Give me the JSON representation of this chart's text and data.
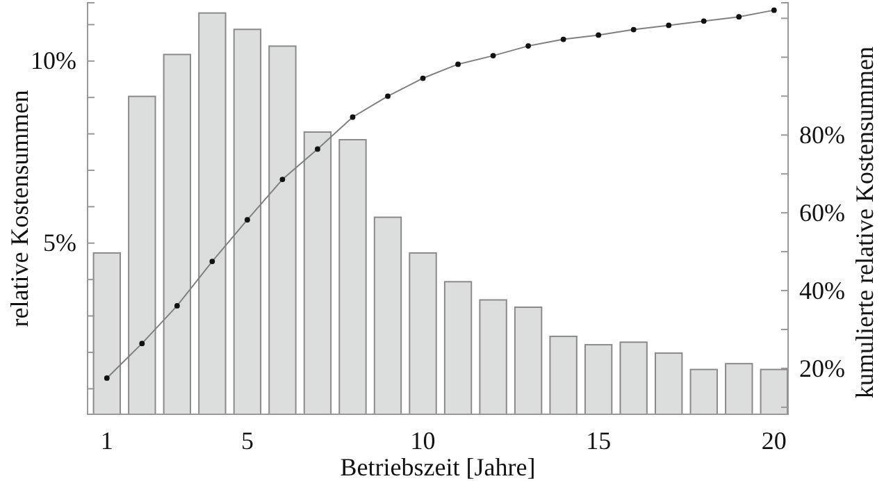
{
  "chart_data": {
    "type": "bar",
    "xlabel": "Betriebszeit [Jahre]",
    "ylabel": "relative Kostensummen",
    "y2label": "kumulierte relative Kostensummen",
    "x": [
      1,
      2,
      3,
      4,
      5,
      6,
      7,
      8,
      9,
      10,
      11,
      12,
      13,
      14,
      15,
      16,
      17,
      18,
      19,
      20
    ],
    "xlim": [
      0.45,
      20.4
    ],
    "xticks": [
      1,
      5,
      10,
      15,
      20
    ],
    "ylim": [
      0.3,
      11.6
    ],
    "yticks": [
      {
        "value": 1,
        "label": null
      },
      {
        "value": 2,
        "label": null
      },
      {
        "value": 3,
        "label": null
      },
      {
        "value": 4,
        "label": null
      },
      {
        "value": 5,
        "label": "5%"
      },
      {
        "value": 6,
        "label": null
      },
      {
        "value": 7,
        "label": null
      },
      {
        "value": 8,
        "label": null
      },
      {
        "value": 9,
        "label": null
      },
      {
        "value": 10,
        "label": "10%"
      },
      {
        "value": 11,
        "label": null
      }
    ],
    "y2lim": [
      8.2,
      114
    ],
    "y2ticks": [
      {
        "value": 10,
        "label": null
      },
      {
        "value": 20,
        "label": "20%"
      },
      {
        "value": 30,
        "label": null
      },
      {
        "value": 40,
        "label": "40%"
      },
      {
        "value": 50,
        "label": null
      },
      {
        "value": 60,
        "label": "60%"
      },
      {
        "value": 70,
        "label": null
      },
      {
        "value": 80,
        "label": "80%"
      },
      {
        "value": 90,
        "label": null
      },
      {
        "value": 100,
        "label": null
      },
      {
        "value": 110,
        "label": null
      }
    ],
    "series": [
      {
        "color": "#dcdddd",
        "values": [
          4.73,
          9.03,
          10.18,
          11.32,
          10.87,
          10.41,
          8.05,
          7.84,
          5.71,
          4.73,
          3.94,
          3.44,
          3.24,
          2.44,
          2.21,
          2.28,
          1.98,
          1.53,
          1.69,
          1.53
        ]
      },
      {
        "type": "line",
        "axis": "y2",
        "color": "#808080",
        "marker": "circle",
        "line_style": "solid",
        "values": [
          17.5,
          26.4,
          36.1,
          47.5,
          58.2,
          68.6,
          76.4,
          84.6,
          90,
          94.6,
          98.2,
          100.4,
          102.9,
          104.6,
          105.7,
          107.1,
          108.2,
          109.3,
          110.4,
          112.1
        ]
      }
    ],
    "grid": false
  }
}
